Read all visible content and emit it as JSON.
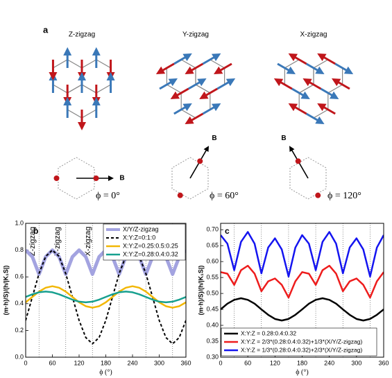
{
  "panel_a": {
    "label": "a",
    "panels": [
      {
        "title": "Z-zigzag",
        "field": "B",
        "angle": "ϕ = 0°"
      },
      {
        "title": "Y-zigzag",
        "field": "B",
        "angle": "ϕ = 60°"
      },
      {
        "title": "X-zigzag",
        "field": "B",
        "angle": "ϕ = 120°"
      }
    ]
  },
  "chart_data": [
    {
      "type": "line",
      "label": "b",
      "xlabel": "ϕ (°)",
      "ylabel": "(m·h)/S)/(h/|K₁S|)",
      "x": [
        0,
        15,
        30,
        45,
        60,
        75,
        90,
        105,
        120,
        135,
        150,
        165,
        180,
        195,
        210,
        225,
        240,
        255,
        270,
        285,
        300,
        315,
        330,
        345,
        360
      ],
      "xlim": [
        0,
        360
      ],
      "xticks": [
        0,
        60,
        120,
        180,
        240,
        300,
        360
      ],
      "ylim": [
        0,
        1.0
      ],
      "yticks": [
        {
          "value": 0,
          "label": "0.0"
        },
        0.2,
        0.4,
        0.6,
        0.8,
        {
          "value": 1.0,
          "label": "1.0"
        }
      ],
      "vlines": [
        30,
        90,
        150,
        210,
        270,
        330
      ],
      "legend": "upper right",
      "annotations": [
        "Z-zigzag",
        "Y-zigzag",
        "X-zigzag"
      ],
      "annotation_color": "#a3a3e0",
      "series": [
        {
          "name": "X/Y/Z-zigzag",
          "color": "#a3a3e0",
          "width": 5,
          "style": "solid",
          "values": [
            0.8,
            0.75,
            0.62,
            0.75,
            0.8,
            0.75,
            0.62,
            0.75,
            0.8,
            0.75,
            0.62,
            0.75,
            0.8,
            0.75,
            0.62,
            0.75,
            0.8,
            0.75,
            0.62,
            0.75,
            0.8,
            0.75,
            0.62,
            0.75,
            0.8
          ]
        },
        {
          "name": "X:Y:Z=0:1:0",
          "color": "#000000",
          "width": 2,
          "style": "dashed",
          "values": [
            0.275,
            0.45,
            0.625,
            0.753,
            0.8,
            0.753,
            0.625,
            0.45,
            0.275,
            0.147,
            0.1,
            0.147,
            0.275,
            0.45,
            0.625,
            0.753,
            0.8,
            0.753,
            0.625,
            0.45,
            0.275,
            0.147,
            0.1,
            0.147,
            0.275
          ]
        },
        {
          "name": "X:Y:Z=0.25:0.5:0.25",
          "color": "#f2b705",
          "width": 2.5,
          "style": "solid",
          "values": [
            0.41,
            0.45,
            0.49,
            0.519,
            0.53,
            0.519,
            0.49,
            0.45,
            0.41,
            0.381,
            0.37,
            0.381,
            0.41,
            0.45,
            0.49,
            0.519,
            0.53,
            0.519,
            0.49,
            0.45,
            0.41,
            0.381,
            0.37,
            0.381,
            0.41
          ]
        },
        {
          "name": "X:Y:Z=0.28:0.4:0.32",
          "color": "#17a08f",
          "width": 2.5,
          "style": "solid",
          "values": [
            0.45,
            0.47,
            0.485,
            0.49,
            0.485,
            0.47,
            0.45,
            0.43,
            0.415,
            0.41,
            0.415,
            0.43,
            0.45,
            0.47,
            0.485,
            0.49,
            0.485,
            0.47,
            0.45,
            0.43,
            0.415,
            0.41,
            0.415,
            0.43,
            0.45
          ]
        }
      ]
    },
    {
      "type": "line",
      "label": "c",
      "xlabel": "ϕ (°)",
      "ylabel": "(m·h)/S)/(h/|K₁S|)",
      "x": [
        0,
        15,
        30,
        45,
        60,
        75,
        90,
        105,
        120,
        135,
        150,
        165,
        180,
        195,
        210,
        225,
        240,
        255,
        270,
        285,
        300,
        315,
        330,
        345,
        360
      ],
      "xlim": [
        0,
        360
      ],
      "xticks": [
        0,
        60,
        120,
        180,
        240,
        300,
        360
      ],
      "ylim": [
        0.3,
        0.72
      ],
      "yticks": [
        {
          "value": 0.3,
          "label": "0.30"
        },
        0.35,
        {
          "value": 0.4,
          "label": "0.40"
        },
        0.45,
        {
          "value": 0.5,
          "label": "0.50"
        },
        0.55,
        {
          "value": 0.6,
          "label": "0.60"
        },
        0.65,
        {
          "value": 0.7,
          "label": "0.70"
        }
      ],
      "vlines": [
        30,
        90,
        150,
        210,
        270,
        330
      ],
      "legend": "lower left",
      "series": [
        {
          "name": "X:Y:Z = 0.28:0.4:0.32",
          "color": "#000000",
          "width": 2.5,
          "style": "solid",
          "values": [
            0.45,
            0.468,
            0.48,
            0.485,
            0.48,
            0.468,
            0.45,
            0.433,
            0.42,
            0.415,
            0.42,
            0.433,
            0.45,
            0.468,
            0.48,
            0.485,
            0.48,
            0.468,
            0.45,
            0.433,
            0.42,
            0.415,
            0.42,
            0.433,
            0.45
          ]
        },
        {
          "name": "X:Y:Z = 2/3*(0.28:0.4:0.32)+1/3*(X/Y/Z-zigzag)",
          "color": "#ee1c1c",
          "width": 2.5,
          "style": "solid",
          "values": [
            0.567,
            0.562,
            0.527,
            0.573,
            0.587,
            0.562,
            0.507,
            0.538,
            0.547,
            0.527,
            0.487,
            0.538,
            0.567,
            0.562,
            0.527,
            0.573,
            0.587,
            0.562,
            0.507,
            0.538,
            0.547,
            0.527,
            0.487,
            0.538,
            0.567
          ]
        },
        {
          "name": "X:Y:Z = 1/3*(0.28:0.4:0.32)+2/3*(X/Y/Z-zigzag)",
          "color": "#1414f0",
          "width": 2.5,
          "style": "solid",
          "values": [
            0.683,
            0.656,
            0.573,
            0.662,
            0.693,
            0.656,
            0.563,
            0.644,
            0.673,
            0.638,
            0.553,
            0.644,
            0.683,
            0.656,
            0.573,
            0.662,
            0.693,
            0.656,
            0.563,
            0.644,
            0.673,
            0.638,
            0.553,
            0.644,
            0.683
          ]
        }
      ]
    }
  ]
}
